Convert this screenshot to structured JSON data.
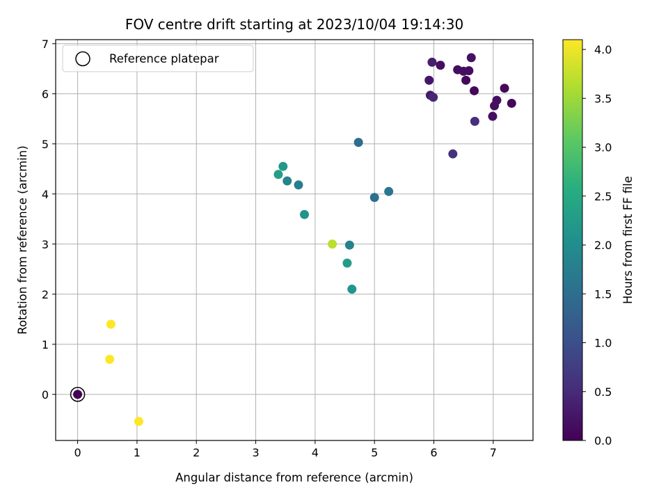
{
  "chart_data": {
    "type": "scatter",
    "title": "FOV centre drift starting at 2023/10/04 19:14:30",
    "xlabel": "Angular distance from reference (arcmin)",
    "ylabel": "Rotation from reference (arcmin)",
    "xlim": [
      -0.37,
      7.67
    ],
    "ylim": [
      -0.92,
      7.08
    ],
    "xticks": [
      "0",
      "1",
      "2",
      "3",
      "4",
      "5",
      "6",
      "7"
    ],
    "yticks": [
      "0",
      "1",
      "2",
      "3",
      "4",
      "5",
      "6",
      "7"
    ],
    "grid": true,
    "legend": {
      "placement": "top-left",
      "entries": [
        "Reference platepar"
      ]
    },
    "reference_point": {
      "x": 0,
      "y": 0
    },
    "colorbar": {
      "label": "Hours from first FF file",
      "colormap": "viridis",
      "range": [
        0.0,
        4.1
      ],
      "ticks": [
        "0.0",
        "0.5",
        "1.0",
        "1.5",
        "2.0",
        "2.5",
        "3.0",
        "3.5",
        "4.0"
      ]
    },
    "points": [
      {
        "x": 0.0,
        "y": 0.0,
        "hours": 0.0
      },
      {
        "x": 5.97,
        "y": 6.63,
        "hours": 0.35
      },
      {
        "x": 6.11,
        "y": 6.57,
        "hours": 0.15
      },
      {
        "x": 5.92,
        "y": 6.27,
        "hours": 0.25
      },
      {
        "x": 5.94,
        "y": 5.97,
        "hours": 0.3
      },
      {
        "x": 5.99,
        "y": 5.93,
        "hours": 0.45
      },
      {
        "x": 6.4,
        "y": 6.48,
        "hours": 0.15
      },
      {
        "x": 6.5,
        "y": 6.45,
        "hours": 0.15
      },
      {
        "x": 6.59,
        "y": 6.46,
        "hours": 0.15
      },
      {
        "x": 6.63,
        "y": 6.72,
        "hours": 0.2
      },
      {
        "x": 6.54,
        "y": 6.27,
        "hours": 0.1
      },
      {
        "x": 6.68,
        "y": 6.06,
        "hours": 0.1
      },
      {
        "x": 7.19,
        "y": 6.11,
        "hours": 0.1
      },
      {
        "x": 7.06,
        "y": 5.87,
        "hours": 0.15
      },
      {
        "x": 7.02,
        "y": 5.76,
        "hours": 0.15
      },
      {
        "x": 7.31,
        "y": 5.81,
        "hours": 0.1
      },
      {
        "x": 6.99,
        "y": 5.55,
        "hours": 0.15
      },
      {
        "x": 6.69,
        "y": 5.45,
        "hours": 0.55
      },
      {
        "x": 6.32,
        "y": 4.8,
        "hours": 0.6
      },
      {
        "x": 4.73,
        "y": 5.03,
        "hours": 1.45
      },
      {
        "x": 5.0,
        "y": 3.93,
        "hours": 1.5
      },
      {
        "x": 5.24,
        "y": 4.05,
        "hours": 1.6
      },
      {
        "x": 3.38,
        "y": 4.39,
        "hours": 2.3
      },
      {
        "x": 3.46,
        "y": 4.55,
        "hours": 2.2
      },
      {
        "x": 3.53,
        "y": 4.26,
        "hours": 1.85
      },
      {
        "x": 3.72,
        "y": 4.18,
        "hours": 1.75
      },
      {
        "x": 3.82,
        "y": 3.59,
        "hours": 2.1
      },
      {
        "x": 4.29,
        "y": 3.0,
        "hours": 3.7
      },
      {
        "x": 4.58,
        "y": 2.98,
        "hours": 1.8
      },
      {
        "x": 4.54,
        "y": 2.62,
        "hours": 2.25
      },
      {
        "x": 4.62,
        "y": 2.1,
        "hours": 2.15
      },
      {
        "x": 0.56,
        "y": 1.4,
        "hours": 4.1
      },
      {
        "x": 0.54,
        "y": 0.7,
        "hours": 4.1
      },
      {
        "x": 1.03,
        "y": -0.54,
        "hours": 4.1
      }
    ]
  }
}
